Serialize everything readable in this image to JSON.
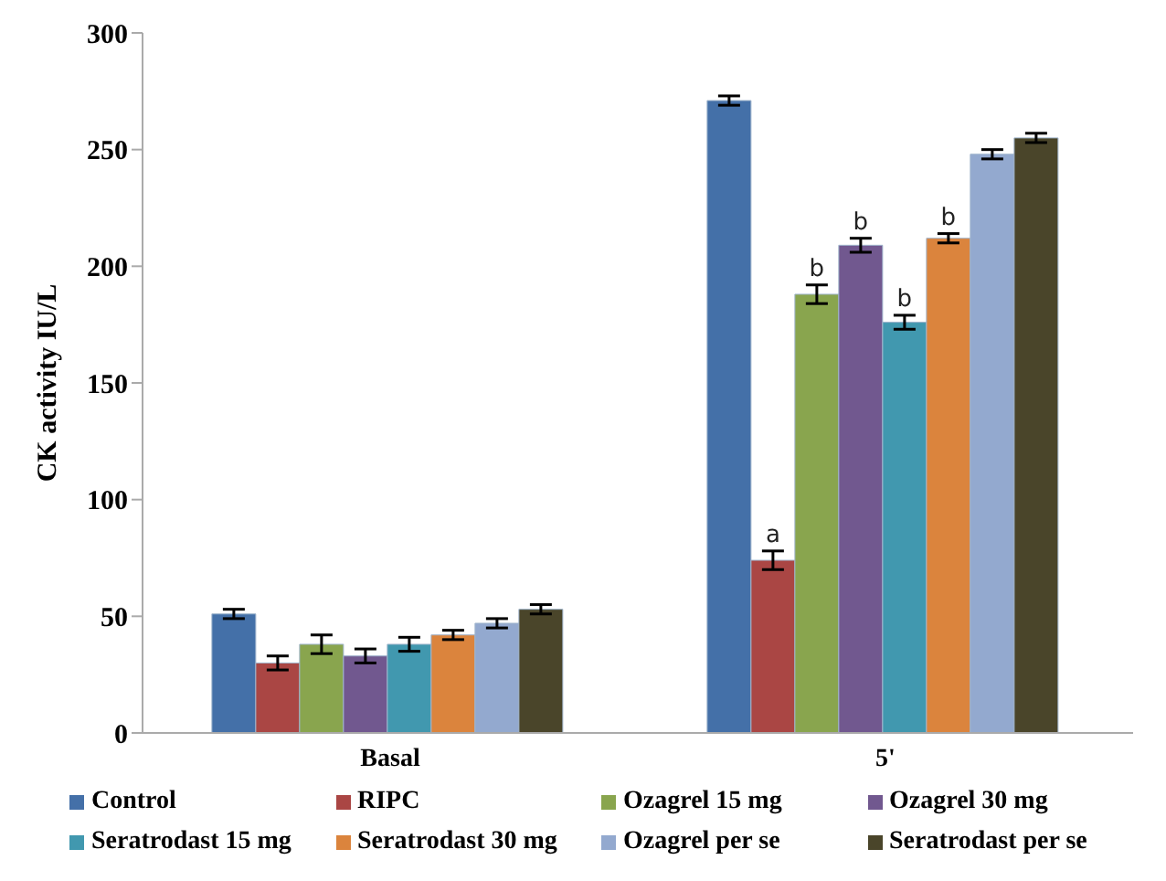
{
  "chart_data": {
    "type": "bar",
    "ylabel": "CK  activity IU/L",
    "categories": [
      "Basal",
      "5'"
    ],
    "ylim": [
      0,
      300
    ],
    "yticks": [
      0,
      50,
      100,
      150,
      200,
      250,
      300
    ],
    "grid": false,
    "legend": "bottom",
    "series": [
      {
        "name": "Control",
        "color": "#4470a8",
        "values": [
          51,
          271
        ],
        "errors": [
          2,
          2
        ]
      },
      {
        "name": "RIPC",
        "color": "#aa4644",
        "values": [
          30,
          74
        ],
        "errors": [
          3,
          4
        ],
        "value_labels": [
          null,
          "a"
        ]
      },
      {
        "name": "Ozagrel 15 mg",
        "color": "#89a54e",
        "values": [
          38,
          188
        ],
        "errors": [
          4,
          4
        ],
        "value_labels": [
          null,
          "b"
        ]
      },
      {
        "name": "Ozagrel 30 mg",
        "color": "#71588f",
        "values": [
          33,
          209
        ],
        "errors": [
          3,
          3
        ],
        "value_labels": [
          null,
          "b"
        ]
      },
      {
        "name": "Seratrodast 15 mg",
        "color": "#4198af",
        "values": [
          38,
          176
        ],
        "errors": [
          3,
          3
        ],
        "value_labels": [
          null,
          "b"
        ]
      },
      {
        "name": "Seratrodast 30 mg",
        "color": "#db843d",
        "values": [
          42,
          212
        ],
        "errors": [
          2,
          2
        ],
        "value_labels": [
          null,
          "b"
        ]
      },
      {
        "name": "Ozagrel per se",
        "color": "#93a9cf",
        "values": [
          47,
          248
        ],
        "errors": [
          2,
          2
        ]
      },
      {
        "name": "Seratrodast per se",
        "color": "#4a452a",
        "values": [
          53,
          255
        ],
        "errors": [
          2,
          2
        ]
      }
    ]
  }
}
